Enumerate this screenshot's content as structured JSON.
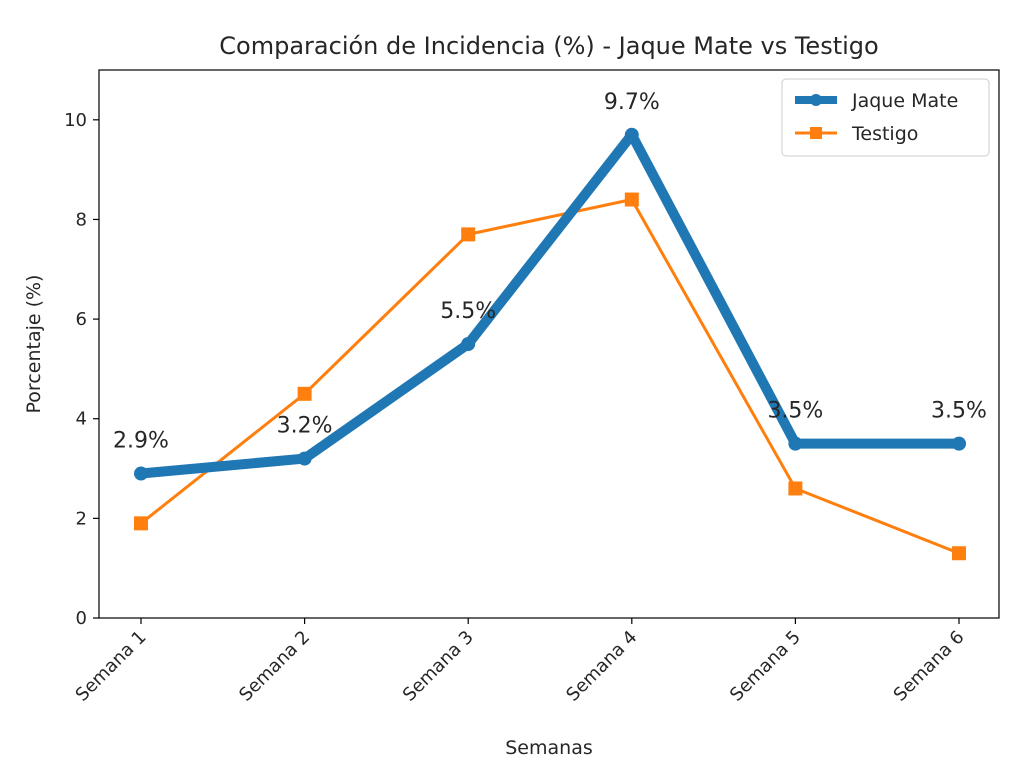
{
  "chart_data": {
    "type": "line",
    "title": "Comparación de Incidencia (%) - Jaque Mate vs Testigo",
    "xlabel": "Semanas",
    "ylabel": "Porcentaje (%)",
    "categories": [
      "Semana 1",
      "Semana 2",
      "Semana 3",
      "Semana 4",
      "Semana 5",
      "Semana 6"
    ],
    "ylim": [
      0,
      11
    ],
    "yticks": [
      0,
      2,
      4,
      6,
      8,
      10
    ],
    "grid": false,
    "legend_position": "top-right",
    "series": [
      {
        "name": "Jaque Mate",
        "values": [
          2.9,
          3.2,
          5.5,
          9.7,
          3.5,
          3.5
        ],
        "labels": [
          "2.9%",
          "3.2%",
          "5.5%",
          "9.7%",
          "3.5%",
          "3.5%"
        ],
        "color": "#1f77b4",
        "marker": "circle"
      },
      {
        "name": "Testigo",
        "values": [
          1.9,
          4.5,
          7.7,
          8.4,
          2.6,
          1.3
        ],
        "color": "#ff7f0e",
        "marker": "square"
      }
    ]
  }
}
